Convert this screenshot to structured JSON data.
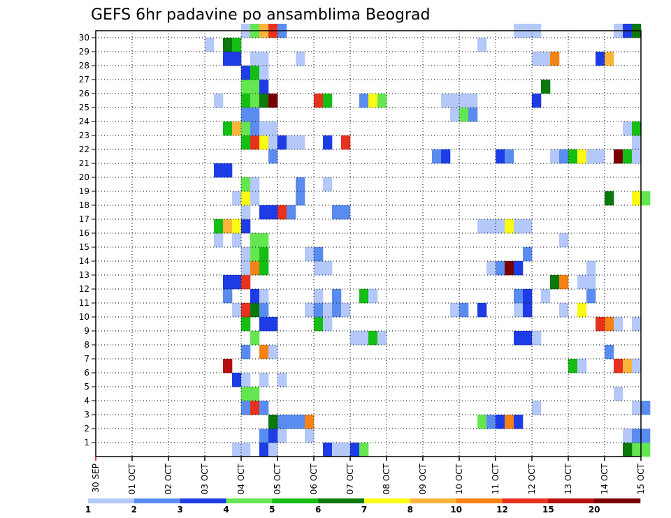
{
  "chart_data": {
    "type": "heatmap",
    "title": "GEFS 6hr padavine po ansamblima Beograd",
    "x": {
      "step_hours": 6,
      "ticks": [
        "30 SEP",
        "01 OCT",
        "02 OCT",
        "03 OCT",
        "04 OCT",
        "05 OCT",
        "06 OCT",
        "07 OCT",
        "08 OCT",
        "09 OCT",
        "10 OCT",
        "11 OCT",
        "12 OCT",
        "13 OCT",
        "14 OCT",
        "15 OCT"
      ],
      "n_steps": 60
    },
    "y": {
      "ticks": [
        "1",
        "2",
        "3",
        "4",
        "5",
        "6",
        "7",
        "8",
        "9",
        "10",
        "11",
        "12",
        "13",
        "14",
        "15",
        "16",
        "17",
        "18",
        "19",
        "20",
        "21",
        "22",
        "23",
        "24",
        "25",
        "26",
        "27",
        "28",
        "29",
        "30"
      ],
      "range": [
        0,
        30
      ]
    },
    "grid": true,
    "colorbar": {
      "labels": [
        "1",
        "2",
        "3",
        "4",
        "5",
        "6",
        "7",
        "8",
        "10",
        "12",
        "15",
        "20"
      ],
      "colors": [
        "#b4c8fa",
        "#5a8cf0",
        "#1e3ce6",
        "#64e650",
        "#14be14",
        "#0a780a",
        "#fafa14",
        "#fab43c",
        "#f58214",
        "#e6321e",
        "#b40f0f",
        "#780000"
      ]
    },
    "cells": [
      [
        0,
        15,
        1
      ],
      [
        0,
        16,
        1
      ],
      [
        0,
        18,
        3
      ],
      [
        0,
        19,
        1
      ],
      [
        0,
        25,
        3
      ],
      [
        0,
        26,
        1
      ],
      [
        0,
        27,
        1
      ],
      [
        0,
        28,
        3
      ],
      [
        0,
        29,
        4
      ],
      [
        0,
        59,
        4
      ],
      [
        0,
        58,
        6
      ],
      [
        0,
        60,
        4
      ],
      [
        1,
        18,
        2
      ],
      [
        1,
        19,
        3
      ],
      [
        1,
        20,
        1
      ],
      [
        1,
        23,
        1
      ],
      [
        1,
        58,
        1
      ],
      [
        1,
        59,
        2
      ],
      [
        1,
        60,
        2
      ],
      [
        2,
        19,
        6
      ],
      [
        2,
        20,
        2
      ],
      [
        2,
        21,
        2
      ],
      [
        2,
        22,
        2
      ],
      [
        2,
        23,
        9
      ],
      [
        2,
        42,
        4
      ],
      [
        2,
        43,
        2
      ],
      [
        2,
        44,
        3
      ],
      [
        2,
        45,
        9
      ],
      [
        2,
        46,
        3
      ],
      [
        3,
        16,
        2
      ],
      [
        3,
        17,
        10
      ],
      [
        3,
        18,
        2
      ],
      [
        3,
        48,
        1
      ],
      [
        3,
        59,
        1
      ],
      [
        3,
        60,
        2
      ],
      [
        4,
        16,
        4
      ],
      [
        4,
        17,
        4
      ],
      [
        4,
        57,
        1
      ],
      [
        5,
        15,
        3
      ],
      [
        5,
        16,
        1
      ],
      [
        5,
        18,
        1
      ],
      [
        5,
        20,
        1
      ],
      [
        6,
        14,
        11
      ],
      [
        6,
        52,
        5
      ],
      [
        6,
        53,
        1
      ],
      [
        6,
        57,
        10
      ],
      [
        6,
        58,
        8
      ],
      [
        6,
        59,
        1
      ],
      [
        7,
        16,
        2
      ],
      [
        7,
        18,
        9
      ],
      [
        7,
        19,
        1
      ],
      [
        7,
        56,
        2
      ],
      [
        8,
        17,
        4
      ],
      [
        8,
        28,
        1
      ],
      [
        8,
        29,
        1
      ],
      [
        8,
        30,
        5
      ],
      [
        8,
        31,
        1
      ],
      [
        8,
        46,
        3
      ],
      [
        8,
        47,
        3
      ],
      [
        8,
        48,
        1
      ],
      [
        9,
        16,
        5
      ],
      [
        9,
        18,
        3
      ],
      [
        9,
        19,
        3
      ],
      [
        9,
        24,
        5
      ],
      [
        9,
        25,
        1
      ],
      [
        9,
        55,
        10
      ],
      [
        9,
        56,
        9
      ],
      [
        9,
        57,
        1
      ],
      [
        9,
        59,
        1
      ],
      [
        10,
        15,
        1
      ],
      [
        10,
        16,
        10
      ],
      [
        10,
        17,
        6
      ],
      [
        10,
        18,
        2
      ],
      [
        10,
        23,
        1
      ],
      [
        10,
        24,
        2
      ],
      [
        10,
        25,
        1
      ],
      [
        10,
        26,
        2
      ],
      [
        10,
        27,
        1
      ],
      [
        10,
        39,
        1
      ],
      [
        10,
        40,
        2
      ],
      [
        10,
        42,
        3
      ],
      [
        10,
        46,
        1
      ],
      [
        10,
        47,
        3
      ],
      [
        10,
        51,
        1
      ],
      [
        10,
        53,
        7
      ],
      [
        11,
        14,
        2
      ],
      [
        11,
        17,
        3
      ],
      [
        11,
        18,
        1
      ],
      [
        11,
        24,
        1
      ],
      [
        11,
        26,
        2
      ],
      [
        11,
        29,
        5
      ],
      [
        11,
        30,
        1
      ],
      [
        11,
        46,
        2
      ],
      [
        11,
        47,
        3
      ],
      [
        11,
        49,
        1
      ],
      [
        11,
        54,
        2
      ],
      [
        12,
        14,
        3
      ],
      [
        12,
        15,
        3
      ],
      [
        12,
        16,
        10
      ],
      [
        12,
        50,
        6
      ],
      [
        12,
        51,
        9
      ],
      [
        12,
        53,
        1
      ],
      [
        12,
        54,
        1
      ],
      [
        13,
        16,
        1
      ],
      [
        13,
        17,
        9
      ],
      [
        13,
        18,
        5
      ],
      [
        13,
        24,
        1
      ],
      [
        13,
        25,
        1
      ],
      [
        13,
        43,
        1
      ],
      [
        13,
        44,
        2
      ],
      [
        13,
        45,
        12
      ],
      [
        13,
        46,
        3
      ],
      [
        13,
        54,
        1
      ],
      [
        14,
        16,
        1
      ],
      [
        14,
        17,
        4
      ],
      [
        14,
        18,
        5
      ],
      [
        14,
        23,
        1
      ],
      [
        14,
        24,
        2
      ],
      [
        14,
        47,
        2
      ],
      [
        15,
        13,
        1
      ],
      [
        15,
        15,
        1
      ],
      [
        15,
        17,
        4
      ],
      [
        15,
        18,
        4
      ],
      [
        15,
        51,
        1
      ],
      [
        16,
        13,
        5
      ],
      [
        16,
        14,
        8
      ],
      [
        16,
        15,
        7
      ],
      [
        16,
        16,
        3
      ],
      [
        16,
        42,
        1
      ],
      [
        16,
        43,
        1
      ],
      [
        16,
        44,
        1
      ],
      [
        16,
        45,
        7
      ],
      [
        16,
        46,
        1
      ],
      [
        16,
        47,
        1
      ],
      [
        17,
        16,
        1
      ],
      [
        17,
        18,
        3
      ],
      [
        17,
        19,
        3
      ],
      [
        17,
        20,
        10
      ],
      [
        17,
        21,
        2
      ],
      [
        17,
        26,
        2
      ],
      [
        17,
        27,
        2
      ],
      [
        18,
        15,
        1
      ],
      [
        18,
        16,
        7
      ],
      [
        18,
        17,
        1
      ],
      [
        18,
        22,
        2
      ],
      [
        18,
        56,
        6
      ],
      [
        18,
        59,
        7
      ],
      [
        18,
        60,
        4
      ],
      [
        19,
        16,
        4
      ],
      [
        19,
        17,
        1
      ],
      [
        19,
        22,
        2
      ],
      [
        19,
        25,
        1
      ],
      [
        20,
        13,
        3
      ],
      [
        20,
        14,
        3
      ],
      [
        21,
        19,
        2
      ],
      [
        21,
        37,
        2
      ],
      [
        21,
        38,
        3
      ],
      [
        21,
        44,
        3
      ],
      [
        21,
        45,
        2
      ],
      [
        21,
        50,
        1
      ],
      [
        21,
        51,
        2
      ],
      [
        21,
        52,
        5
      ],
      [
        21,
        53,
        7
      ],
      [
        21,
        54,
        1
      ],
      [
        21,
        55,
        1
      ],
      [
        21,
        57,
        12
      ],
      [
        21,
        58,
        5
      ],
      [
        21,
        59,
        1
      ],
      [
        22,
        16,
        5
      ],
      [
        22,
        17,
        10
      ],
      [
        22,
        18,
        7
      ],
      [
        22,
        19,
        1
      ],
      [
        22,
        20,
        3
      ],
      [
        22,
        21,
        1
      ],
      [
        22,
        22,
        1
      ],
      [
        22,
        25,
        3
      ],
      [
        22,
        27,
        10
      ],
      [
        22,
        59,
        1
      ],
      [
        23,
        14,
        5
      ],
      [
        23,
        15,
        8
      ],
      [
        23,
        16,
        4
      ],
      [
        23,
        17,
        2
      ],
      [
        23,
        18,
        1
      ],
      [
        23,
        19,
        1
      ],
      [
        23,
        58,
        1
      ],
      [
        23,
        59,
        5
      ],
      [
        24,
        16,
        2
      ],
      [
        24,
        17,
        2
      ],
      [
        24,
        39,
        1
      ],
      [
        24,
        40,
        4
      ],
      [
        24,
        41,
        2
      ],
      [
        25,
        13,
        1
      ],
      [
        25,
        16,
        5
      ],
      [
        25,
        17,
        4
      ],
      [
        25,
        18,
        6
      ],
      [
        25,
        19,
        12
      ],
      [
        25,
        24,
        10
      ],
      [
        25,
        25,
        5
      ],
      [
        25,
        29,
        2
      ],
      [
        25,
        30,
        7
      ],
      [
        25,
        31,
        4
      ],
      [
        25,
        38,
        1
      ],
      [
        25,
        39,
        1
      ],
      [
        25,
        40,
        1
      ],
      [
        25,
        41,
        1
      ],
      [
        25,
        48,
        3
      ],
      [
        26,
        16,
        4
      ],
      [
        26,
        17,
        4
      ],
      [
        26,
        18,
        3
      ],
      [
        26,
        49,
        6
      ],
      [
        27,
        16,
        3
      ],
      [
        27,
        17,
        5
      ],
      [
        27,
        18,
        1
      ],
      [
        28,
        14,
        3
      ],
      [
        28,
        15,
        3
      ],
      [
        28,
        17,
        1
      ],
      [
        28,
        18,
        1
      ],
      [
        28,
        22,
        1
      ],
      [
        28,
        48,
        1
      ],
      [
        28,
        49,
        1
      ],
      [
        28,
        50,
        9
      ],
      [
        28,
        55,
        3
      ],
      [
        28,
        56,
        8
      ],
      [
        29,
        12,
        1
      ],
      [
        29,
        14,
        6
      ],
      [
        29,
        15,
        5
      ],
      [
        29,
        42,
        1
      ],
      [
        30,
        16,
        1
      ],
      [
        30,
        17,
        4
      ],
      [
        30,
        18,
        8
      ],
      [
        30,
        19,
        10
      ],
      [
        30,
        20,
        2
      ],
      [
        30,
        46,
        1
      ],
      [
        30,
        47,
        1
      ],
      [
        30,
        48,
        1
      ],
      [
        30,
        57,
        1
      ],
      [
        30,
        58,
        3
      ],
      [
        30,
        59,
        6
      ]
    ]
  }
}
